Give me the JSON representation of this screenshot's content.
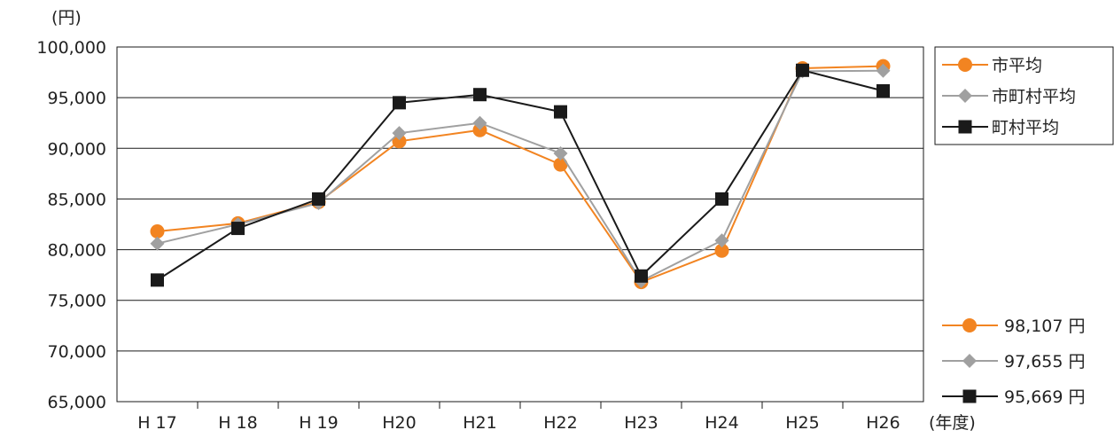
{
  "chart_data": {
    "type": "line",
    "y_unit": "(円)",
    "x_unit": "(年度)",
    "categories": [
      "H 17",
      "H 18",
      "H 19",
      "H20",
      "H21",
      "H22",
      "H23",
      "H24",
      "H25",
      "H26"
    ],
    "ylim": [
      65000,
      100000
    ],
    "yticks": [
      65000,
      70000,
      75000,
      80000,
      85000,
      90000,
      95000,
      100000
    ],
    "ytick_labels": [
      "65,000",
      "70,000",
      "75,000",
      "80,000",
      "85,000",
      "90,000",
      "95,000",
      "100,000"
    ],
    "grid": true,
    "legend_position": "top-right",
    "series": [
      {
        "name": "市平均",
        "color": "#f28421",
        "marker": "circle",
        "values": [
          81800,
          82600,
          84700,
          90700,
          91800,
          88400,
          76800,
          79900,
          97900,
          98107
        ],
        "end_label": "98,107 円"
      },
      {
        "name": "市町村平均",
        "color": "#a0a0a0",
        "marker": "diamond",
        "values": [
          80600,
          82500,
          84600,
          91500,
          92500,
          89500,
          76900,
          80900,
          97600,
          97655
        ],
        "end_label": "97,655 円"
      },
      {
        "name": "町村平均",
        "color": "#1a1a1a",
        "marker": "square",
        "values": [
          77000,
          82100,
          85000,
          94500,
          95300,
          93600,
          77400,
          85000,
          97700,
          95669
        ],
        "end_label": "95,669 円"
      }
    ]
  }
}
